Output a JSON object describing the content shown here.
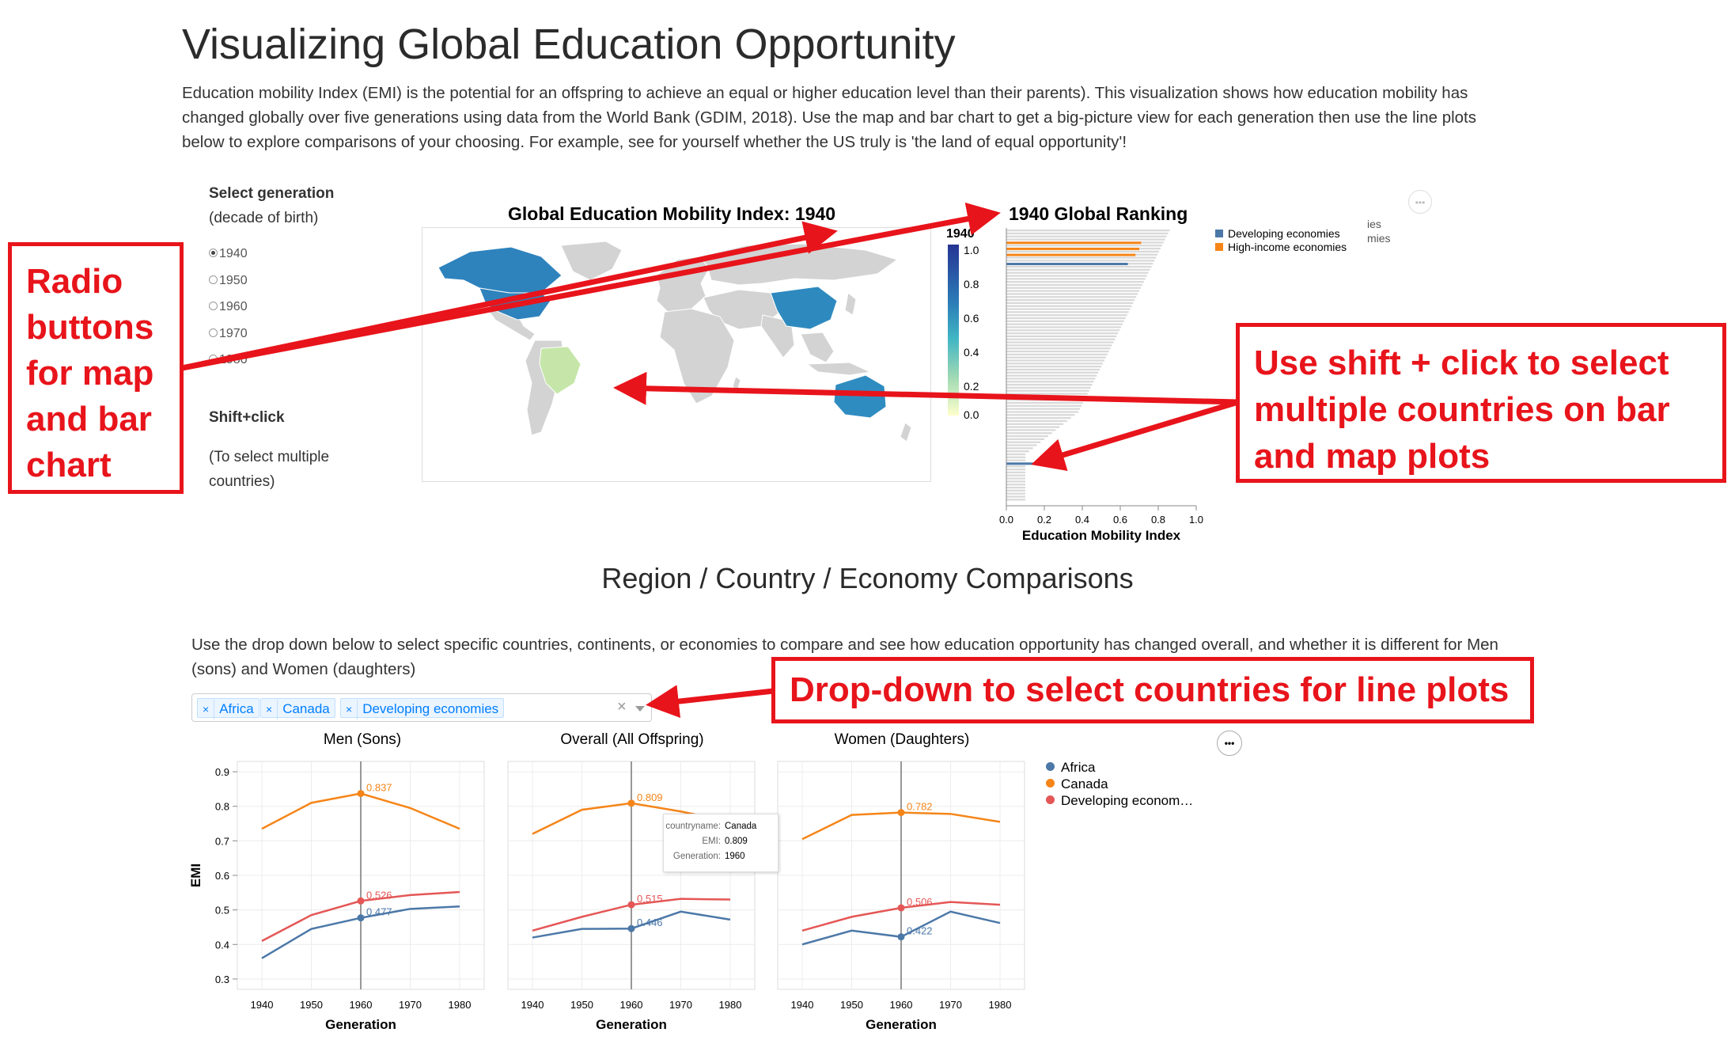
{
  "page": {
    "title": "Visualizing Global Education Opportunity",
    "intro": "Education mobility Index (EMI) is the potential for an offspring to achieve an equal or higher education level than their parents). This visualization shows how education mobility has changed globally over five generations using data from the World Bank (GDIM, 2018). Use the map and bar chart to get a big-picture view for each generation then use the line plots below to explore comparisons of your choosing. For example, see for yourself whether the US truly is 'the land of equal opportunity'!"
  },
  "controls": {
    "select_title": "Select generation",
    "select_subtitle": "(decade of birth)",
    "generations": [
      {
        "label": "1940",
        "checked": true
      },
      {
        "label": "1950",
        "checked": false
      },
      {
        "label": "1960",
        "checked": false
      },
      {
        "label": "1970",
        "checked": false
      },
      {
        "label": "1980",
        "checked": false
      }
    ],
    "shift_title": "Shift+click",
    "shift_text": "(To select multiple countries)"
  },
  "map": {
    "title": "Global Education Mobility Index: 1940",
    "legend_title": "1940",
    "legend_ticks": [
      "1.0",
      "0.8",
      "0.6",
      "0.4",
      "0.2",
      "0.0"
    ],
    "highlighted": [
      {
        "name": "Canada",
        "color": "#2e83bd"
      },
      {
        "name": "United States",
        "color": "#2e83bd"
      },
      {
        "name": "China",
        "color": "#2e8abe"
      },
      {
        "name": "Australia",
        "color": "#2f8cc0"
      },
      {
        "name": "Brazil",
        "color": "#c5e6a8"
      }
    ],
    "base_color": "#d3d3d3"
  },
  "ranking": {
    "title": "1940 Global Ranking",
    "xlabel": "Education Mobility Index",
    "x_ticks": [
      "0.0",
      "0.2",
      "0.4",
      "0.6",
      "0.8",
      "1.0"
    ],
    "legend": [
      {
        "label": "Developing economies",
        "color": "#4c78a8"
      },
      {
        "label": "High-income economies",
        "color": "#f58518"
      }
    ],
    "hidden_legend_fragments": [
      "ies",
      "mies"
    ],
    "highlighted_bars": [
      {
        "rank": 4,
        "value": 0.71,
        "color": "#f58518"
      },
      {
        "rank": 6,
        "value": 0.7,
        "color": "#f58518"
      },
      {
        "rank": 8,
        "value": 0.68,
        "color": "#f58518"
      },
      {
        "rank": 11,
        "value": 0.64,
        "color": "#4c78a8"
      },
      {
        "rank": 77,
        "value": 0.16,
        "color": "#4c78a8"
      }
    ]
  },
  "comparisons": {
    "title": "Region / Country / Economy Comparisons",
    "instructions": "Use the drop down below to select specific countries, continents, or economies to compare and see how education opportunity has changed overall, and whether it is different for Men (sons) and Women (daughters)",
    "selected": [
      "Africa",
      "Canada",
      "Developing economies"
    ],
    "clear_symbol": "×",
    "tag_remove_symbol": "×",
    "menu_symbol": "•••",
    "legend": [
      {
        "label": "Africa",
        "color": "#4c78a8"
      },
      {
        "label": "Canada",
        "color": "#f58518"
      },
      {
        "label": "Developing econom…",
        "color": "#e45756"
      }
    ],
    "tooltip": {
      "rows": [
        {
          "key": "countryname:",
          "value": "Canada"
        },
        {
          "key": "EMI:",
          "value": "0.809"
        },
        {
          "key": "Generation:",
          "value": "1960"
        }
      ]
    }
  },
  "annotations": {
    "radio": "Radio buttons for map and bar chart",
    "shift": "Use shift + click to select multiple countries on bar and map plots",
    "dropdown": "Drop-down to select countries for line plots"
  },
  "chart_data": [
    {
      "type": "line",
      "title": "Men (Sons)",
      "xlabel": "Generation",
      "ylabel": "EMI",
      "x": [
        1940,
        1950,
        1960,
        1970,
        1980
      ],
      "ylim": [
        0.27,
        0.93
      ],
      "y_ticks": [
        0.3,
        0.4,
        0.5,
        0.6,
        0.7,
        0.8,
        0.9
      ],
      "rule_x": 1960,
      "series": [
        {
          "name": "Africa",
          "color": "#4c78a8",
          "values": [
            0.36,
            0.445,
            0.477,
            0.503,
            0.51
          ]
        },
        {
          "name": "Canada",
          "color": "#f58518",
          "values": [
            0.735,
            0.81,
            0.837,
            0.795,
            0.735
          ]
        },
        {
          "name": "Developing economies",
          "color": "#e45756",
          "values": [
            0.41,
            0.485,
            0.526,
            0.543,
            0.552
          ]
        }
      ],
      "point_labels": [
        "0.837",
        "0.526",
        "0.477"
      ]
    },
    {
      "type": "line",
      "title": "Overall (All Offspring)",
      "xlabel": "Generation",
      "ylabel": "",
      "x": [
        1940,
        1950,
        1960,
        1970,
        1980
      ],
      "ylim": [
        0.27,
        0.93
      ],
      "rule_x": 1960,
      "series": [
        {
          "name": "Africa",
          "color": "#4c78a8",
          "values": [
            0.42,
            0.445,
            0.446,
            0.495,
            0.472
          ]
        },
        {
          "name": "Canada",
          "color": "#f58518",
          "values": [
            0.72,
            0.79,
            0.809,
            0.785,
            0.755
          ]
        },
        {
          "name": "Developing economies",
          "color": "#e45756",
          "values": [
            0.44,
            0.48,
            0.515,
            0.532,
            0.53
          ]
        }
      ],
      "point_labels": [
        "0.809",
        "0.515",
        "0.446"
      ]
    },
    {
      "type": "line",
      "title": "Women (Daughters)",
      "xlabel": "Generation",
      "ylabel": "",
      "x": [
        1940,
        1950,
        1960,
        1970,
        1980
      ],
      "ylim": [
        0.27,
        0.93
      ],
      "rule_x": 1960,
      "series": [
        {
          "name": "Africa",
          "color": "#4c78a8",
          "values": [
            0.4,
            0.44,
            0.422,
            0.495,
            0.462
          ]
        },
        {
          "name": "Canada",
          "color": "#f58518",
          "values": [
            0.705,
            0.775,
            0.782,
            0.778,
            0.755
          ]
        },
        {
          "name": "Developing economies",
          "color": "#e45756",
          "values": [
            0.44,
            0.48,
            0.506,
            0.523,
            0.515
          ]
        }
      ],
      "point_labels": [
        "0.782",
        "0.506",
        "0.422"
      ]
    }
  ]
}
